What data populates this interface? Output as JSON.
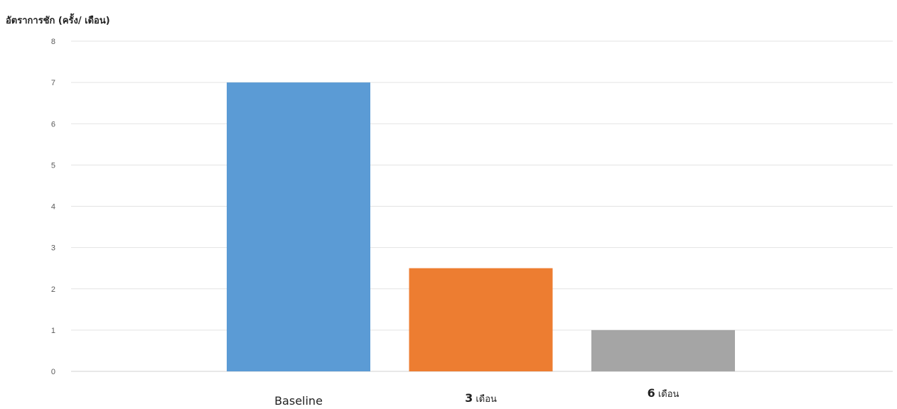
{
  "chart_data": {
    "type": "bar",
    "title": "",
    "ylabel": "อัตราการชัก (ครั้ง/ เดือน)",
    "xlabel": "",
    "ylim": [
      0,
      8
    ],
    "yticks": [
      0,
      1,
      2,
      3,
      4,
      5,
      6,
      7,
      8
    ],
    "grid": true,
    "legend": "none",
    "categories": [
      {
        "label": "Baseline",
        "num": "",
        "suffix": ""
      },
      {
        "label": "",
        "num": "3",
        "suffix": " เดือน"
      },
      {
        "label": "",
        "num": "6",
        "suffix": " เดือน"
      }
    ],
    "values": [
      7,
      2.5,
      1
    ],
    "colors": [
      "#5b9bd5",
      "#ed7d31",
      "#a5a5a5"
    ]
  }
}
